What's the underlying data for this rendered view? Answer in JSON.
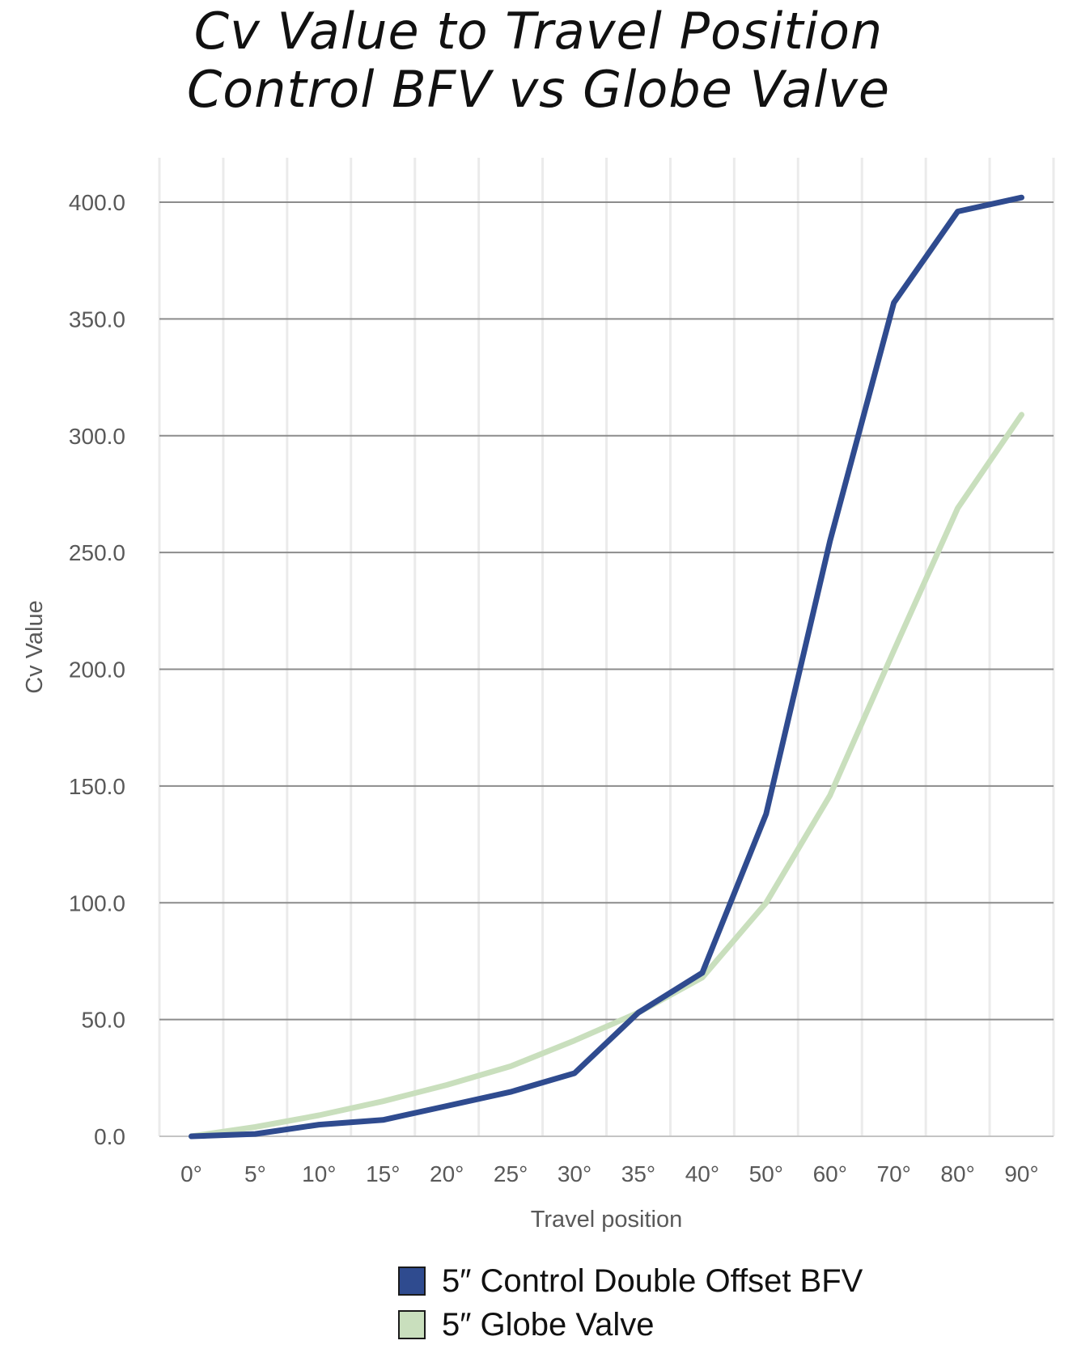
{
  "chart_data": {
    "type": "line",
    "title": [
      "Cv Value to Travel Position",
      "Control BFV vs Globe Valve"
    ],
    "xlabel": "Travel position",
    "ylabel": "Cv Value",
    "categories": [
      "0°",
      "5°",
      "10°",
      "15°",
      "20°",
      "25°",
      "30°",
      "35°",
      "40°",
      "50°",
      "60°",
      "70°",
      "80°",
      "90°"
    ],
    "yticks": [
      "0.0",
      "50.0",
      "100.0",
      "150.0",
      "200.0",
      "250.0",
      "300.0",
      "350.0",
      "400.0"
    ],
    "ylim": [
      0,
      400
    ],
    "grid": true,
    "legend_position": "bottom",
    "series": [
      {
        "name": "5″ Control Double Offset BFV",
        "color": "#2f4b8f",
        "values": [
          0,
          1,
          5,
          7,
          13,
          19,
          27,
          53,
          70,
          138,
          255,
          357,
          396,
          402
        ]
      },
      {
        "name": "5″ Globe Valve",
        "color": "#c9dfbd",
        "values": [
          0,
          4,
          9,
          15,
          22,
          30,
          41,
          53,
          68,
          100,
          146,
          208,
          269,
          309
        ]
      }
    ]
  }
}
